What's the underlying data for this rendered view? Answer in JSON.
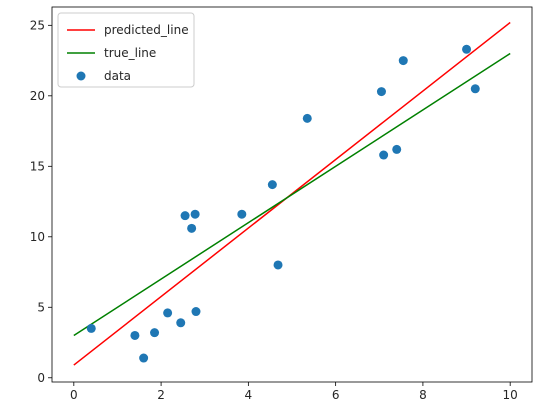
{
  "chart_data": {
    "type": "scatter",
    "title": "",
    "xlabel": "",
    "ylabel": "",
    "xlim": [
      -0.5,
      10.5
    ],
    "ylim": [
      -0.3,
      26.3
    ],
    "xticks": [
      0,
      2,
      4,
      6,
      8,
      10
    ],
    "yticks": [
      0,
      5,
      10,
      15,
      20,
      25
    ],
    "grid": false,
    "legend_position": "top-left",
    "series": [
      {
        "name": "predicted_line",
        "kind": "line",
        "color": "#ff0000",
        "x": [
          0,
          10
        ],
        "y": [
          0.9,
          25.2
        ]
      },
      {
        "name": "true_line",
        "kind": "line",
        "color": "#008000",
        "x": [
          0,
          10
        ],
        "y": [
          3.0,
          23.0
        ]
      },
      {
        "name": "data",
        "kind": "scatter",
        "color": "#1f77b4",
        "x": [
          0.4,
          1.4,
          1.6,
          1.85,
          2.15,
          2.45,
          2.55,
          2.7,
          2.78,
          2.8,
          3.85,
          4.55,
          4.68,
          5.35,
          7.05,
          7.1,
          7.4,
          7.55,
          9.0,
          9.2
        ],
        "y": [
          3.5,
          3.0,
          1.4,
          3.2,
          4.6,
          3.9,
          11.5,
          10.6,
          11.6,
          4.7,
          11.6,
          13.7,
          8.0,
          18.4,
          20.3,
          15.8,
          16.2,
          22.5,
          23.3,
          20.5
        ]
      }
    ]
  }
}
